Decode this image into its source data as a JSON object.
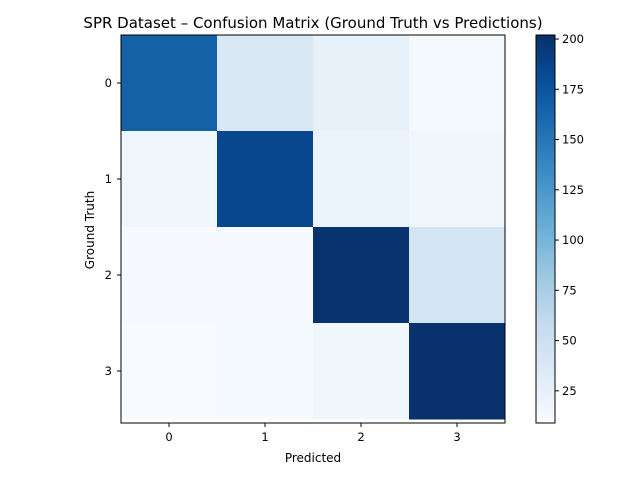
{
  "chart_data": {
    "type": "heatmap",
    "title": "SPR Dataset – Confusion Matrix (Ground Truth vs Predictions)",
    "xlabel": "Predicted",
    "ylabel": "Ground Truth",
    "x_categories": [
      "0",
      "1",
      "2",
      "3"
    ],
    "y_categories": [
      "0",
      "1",
      "2",
      "3"
    ],
    "values": [
      [
        166,
        38,
        24,
        12
      ],
      [
        17,
        185,
        21,
        17
      ],
      [
        10,
        10,
        200,
        44
      ],
      [
        9,
        11,
        17,
        201
      ]
    ],
    "colormap": "Blues",
    "colorbar": {
      "range": [
        9,
        202
      ],
      "ticks": [
        25,
        50,
        75,
        100,
        125,
        150,
        175,
        200
      ]
    }
  }
}
